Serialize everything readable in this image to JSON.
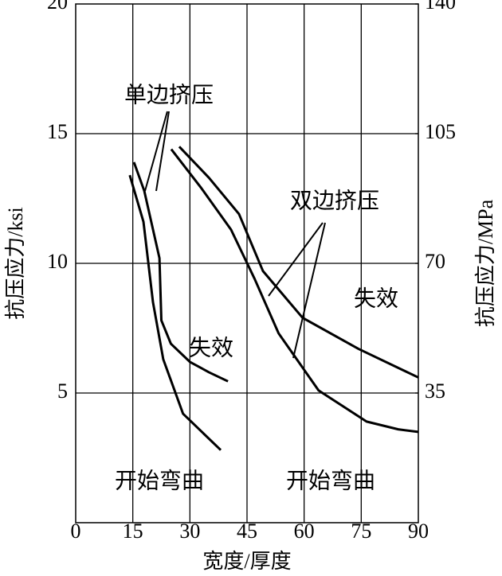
{
  "chart_data": {
    "type": "line",
    "x_label": "宽度/厚度",
    "y_label": "抗压应力/ksi",
    "y2_label": "抗压应力/MPa",
    "xlim": [
      0,
      90
    ],
    "xticks": [
      0,
      15,
      30,
      45,
      60,
      75,
      90
    ],
    "ylim": [
      0,
      20
    ],
    "yticks": [
      5,
      10,
      15,
      20
    ],
    "y2lim": [
      0,
      140
    ],
    "y2ticks": [
      35,
      70,
      105,
      140
    ],
    "grid": true,
    "series": [
      {
        "color": "#000000",
        "x": [
          15.3,
          18,
          20,
          22,
          22.5,
          25,
          30,
          35,
          40
        ],
        "values": [
          13.9,
          12.8,
          11.5,
          10.2,
          7.8,
          6.9,
          6.2,
          5.8,
          5.45
        ]
      },
      {
        "color": "#000000",
        "x": [
          14.2,
          17.8,
          20.3,
          23,
          28.2,
          38.1
        ],
        "values": [
          13.4,
          11.6,
          8.5,
          6.3,
          4.2,
          2.8
        ]
      },
      {
        "color": "#000000",
        "x": [
          27.2,
          35,
          42.9,
          49.2,
          59.6,
          74.3,
          90
        ],
        "values": [
          14.5,
          13.3,
          11.9,
          9.7,
          7.9,
          6.7,
          5.6
        ]
      },
      {
        "color": "#000000",
        "x": [
          25.1,
          33,
          40.8,
          47,
          53.3,
          63.8,
          76.4,
          84.7,
          90
        ],
        "values": [
          14.4,
          12.9,
          11.3,
          9.4,
          7.3,
          5.1,
          3.9,
          3.6,
          3.5
        ]
      }
    ],
    "annotations": [
      "单边挤压",
      "双边挤压",
      "失效",
      "失效",
      "开始弯曲",
      "开始弯曲"
    ]
  }
}
